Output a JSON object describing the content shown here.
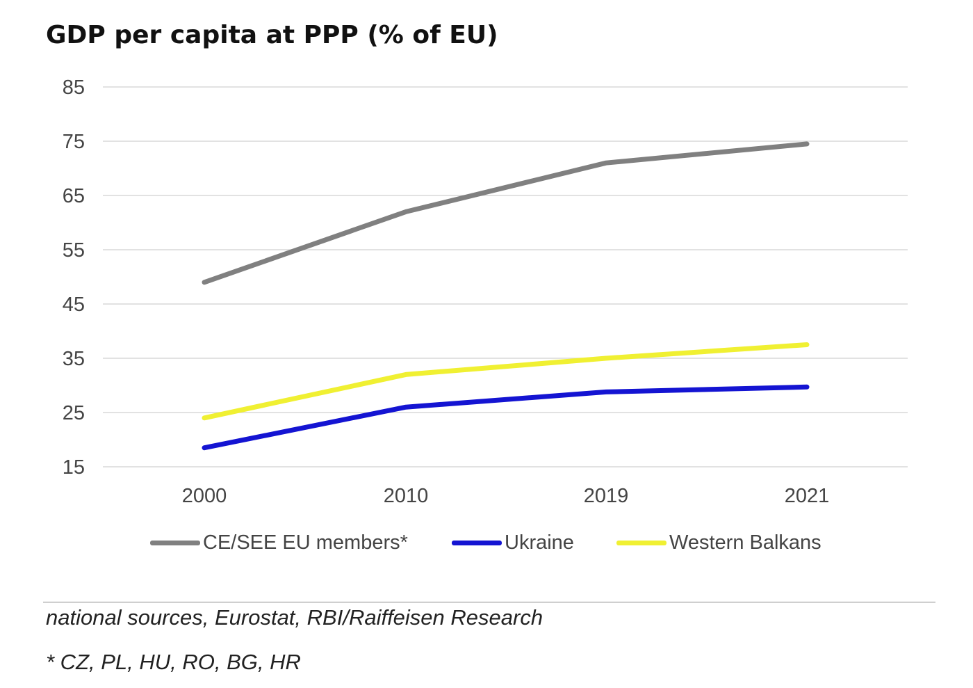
{
  "chart_data": {
    "type": "line",
    "title": "GDP per capita at PPP (% of EU)",
    "xlabel": "",
    "ylabel": "",
    "categories": [
      "2000",
      "2010",
      "2019",
      "2021"
    ],
    "ylim": [
      15,
      85
    ],
    "yticks": [
      85,
      75,
      65,
      55,
      45,
      35,
      25,
      15
    ],
    "grid": true,
    "legend_position": "bottom",
    "series": [
      {
        "name": "CE/SEE EU members*",
        "color": "#808080",
        "values": [
          49,
          62,
          71,
          74.5
        ]
      },
      {
        "name": "Ukraine",
        "color": "#1414d2",
        "values": [
          18.5,
          26,
          28.8,
          29.7
        ]
      },
      {
        "name": "Western Balkans",
        "color": "#f0f032",
        "values": [
          24,
          32,
          35,
          37.5
        ]
      }
    ]
  },
  "notes": {
    "source": "national sources, Eurostat, RBI/Raiffeisen Research",
    "footnote": "* CZ, PL, HU, RO, BG, HR"
  }
}
